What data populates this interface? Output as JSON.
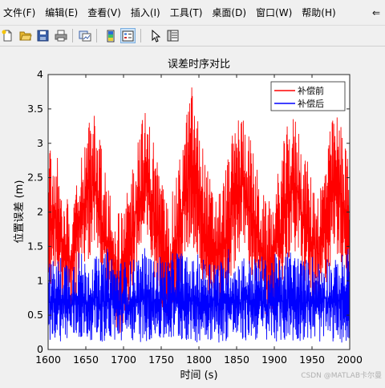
{
  "menu": {
    "items": [
      "文件(F)",
      "编辑(E)",
      "查看(V)",
      "插入(I)",
      "工具(T)",
      "桌面(D)",
      "窗口(W)",
      "帮助(H)"
    ],
    "overflow": "⇐"
  },
  "toolbar": {
    "icons": [
      "new-figure-icon",
      "open-file-icon",
      "save-icon",
      "print-icon",
      "link-plot-icon",
      "colorbar-icon",
      "legend-icon",
      "pointer-icon",
      "property-inspector-icon"
    ]
  },
  "watermark": "CSDN @MATLAB卡尔曼",
  "colors": {
    "before": "#ff0000",
    "after": "#0000ff"
  },
  "chart_data": {
    "type": "line",
    "title": "误差时序对比",
    "xlabel": "时间 (s)",
    "ylabel": "位置误差 (m)",
    "xlim": [
      1600,
      2000
    ],
    "ylim": [
      0,
      4
    ],
    "xticks": [
      "1600",
      "1650",
      "1700",
      "1750",
      "1800",
      "1850",
      "1900",
      "1950",
      "2000"
    ],
    "yticks": [
      "0",
      "0.5",
      "1",
      "1.5",
      "2",
      "2.5",
      "3",
      "3.5",
      "4"
    ],
    "grid": false,
    "legend_position": "top-right",
    "series": [
      {
        "name": "补偿前",
        "color": "#ff0000",
        "x": [
          1600,
          1610,
          1620,
          1630,
          1640,
          1650,
          1660,
          1670,
          1680,
          1690,
          1700,
          1710,
          1720,
          1730,
          1740,
          1750,
          1760,
          1770,
          1780,
          1790,
          1800,
          1810,
          1820,
          1830,
          1840,
          1850,
          1860,
          1870,
          1880,
          1890,
          1900,
          1910,
          1920,
          1930,
          1940,
          1950,
          1960,
          1970,
          1980,
          1990,
          2000
        ],
        "values": [
          2.0,
          2.2,
          1.5,
          1.3,
          1.9,
          2.4,
          2.6,
          2.1,
          1.5,
          1.2,
          1.1,
          1.8,
          2.4,
          2.6,
          2.2,
          1.6,
          1.3,
          1.6,
          2.3,
          2.7,
          2.4,
          1.8,
          1.4,
          1.5,
          2.0,
          2.5,
          2.6,
          2.1,
          1.6,
          1.3,
          1.4,
          2.0,
          2.5,
          2.5,
          2.0,
          1.6,
          1.5,
          2.1,
          2.6,
          2.4,
          1.8
        ],
        "upper": [
          2.9,
          3.0,
          2.3,
          2.2,
          2.8,
          3.3,
          3.5,
          3.0,
          2.4,
          2.0,
          2.0,
          2.6,
          3.3,
          3.5,
          3.1,
          2.5,
          2.1,
          2.5,
          3.2,
          3.9,
          3.3,
          2.7,
          2.3,
          2.4,
          2.9,
          3.4,
          3.5,
          3.0,
          2.5,
          2.1,
          2.3,
          2.9,
          3.4,
          3.4,
          2.9,
          2.5,
          2.4,
          3.0,
          3.5,
          3.3,
          2.6
        ],
        "lower": [
          0.9,
          1.0,
          0.6,
          0.5,
          0.8,
          1.2,
          1.4,
          1.0,
          0.6,
          0.3,
          0.15,
          0.7,
          1.2,
          1.4,
          1.0,
          0.6,
          0.4,
          0.6,
          1.1,
          1.5,
          1.2,
          0.7,
          0.5,
          0.5,
          0.9,
          1.3,
          1.4,
          1.0,
          0.6,
          0.4,
          0.5,
          0.9,
          1.3,
          1.3,
          0.9,
          0.6,
          0.5,
          1.0,
          1.4,
          1.2,
          0.8
        ]
      },
      {
        "name": "补偿后",
        "color": "#0000ff",
        "x": [
          1600,
          1610,
          1620,
          1630,
          1640,
          1650,
          1660,
          1670,
          1680,
          1690,
          1700,
          1710,
          1720,
          1730,
          1740,
          1750,
          1760,
          1770,
          1780,
          1790,
          1800,
          1810,
          1820,
          1830,
          1840,
          1850,
          1860,
          1870,
          1880,
          1890,
          1900,
          1910,
          1920,
          1930,
          1940,
          1950,
          1960,
          1970,
          1980,
          1990,
          2000
        ],
        "values": [
          0.7,
          0.7,
          0.7,
          0.7,
          0.7,
          0.7,
          0.7,
          0.7,
          0.7,
          0.7,
          0.7,
          0.7,
          0.7,
          0.7,
          0.7,
          0.7,
          0.7,
          0.7,
          0.7,
          0.7,
          0.7,
          0.7,
          0.7,
          0.7,
          0.7,
          0.7,
          0.7,
          0.7,
          0.7,
          0.7,
          0.7,
          0.7,
          0.7,
          0.7,
          0.7,
          0.7,
          0.7,
          0.7,
          0.7,
          0.7,
          0.7
        ],
        "upper": [
          1.3,
          1.3,
          1.4,
          1.3,
          1.5,
          1.3,
          1.4,
          1.3,
          1.5,
          1.3,
          1.3,
          1.3,
          1.4,
          1.5,
          1.3,
          1.4,
          1.3,
          1.5,
          1.4,
          1.3,
          1.4,
          1.3,
          1.4,
          1.3,
          1.5,
          1.3,
          1.4,
          1.3,
          1.4,
          1.3,
          1.4,
          1.3,
          1.5,
          1.4,
          1.3,
          1.4,
          1.3,
          1.4,
          1.3,
          1.4,
          1.5
        ],
        "lower": [
          0.1,
          0.15,
          0.1,
          0.1,
          0.12,
          0.1,
          0.15,
          0.1,
          0.1,
          0.1,
          0.1,
          0.12,
          0.1,
          0.1,
          0.15,
          0.1,
          0.1,
          0.1,
          0.12,
          0.1,
          0.1,
          0.15,
          0.1,
          0.1,
          0.12,
          0.1,
          0.1,
          0.15,
          0.1,
          0.1,
          0.12,
          0.1,
          0.1,
          0.1,
          0.15,
          0.1,
          0.1,
          0.12,
          0.1,
          0.1,
          0.1
        ]
      }
    ]
  }
}
